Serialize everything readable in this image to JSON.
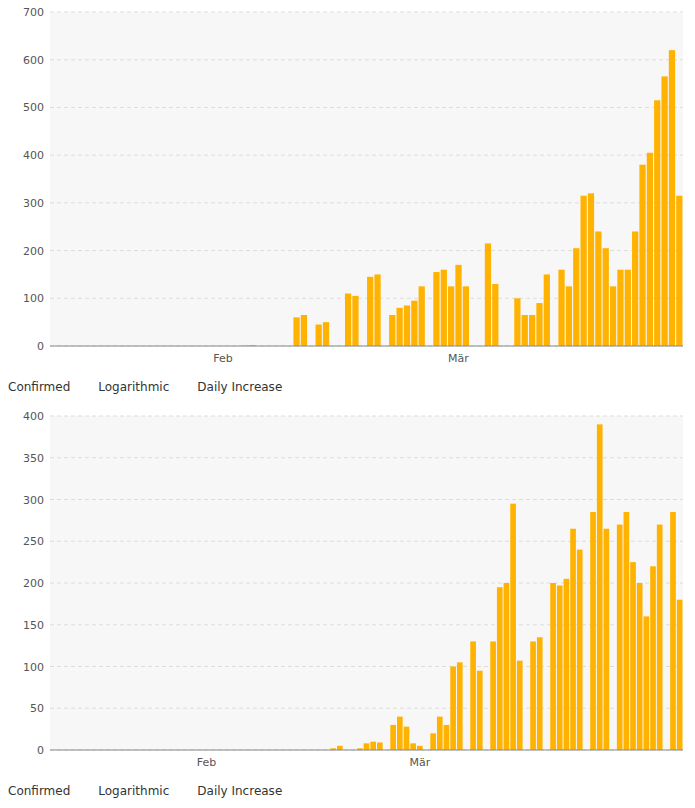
{
  "chart_data": [
    {
      "type": "bar",
      "categories": [
        null,
        null,
        null,
        null,
        null,
        null,
        null,
        null,
        null,
        null,
        null,
        null,
        null,
        null,
        null,
        null,
        null,
        null,
        null,
        null,
        null,
        null,
        null,
        "Feb",
        null,
        null,
        null,
        null,
        null,
        null,
        null,
        null,
        null,
        null,
        null,
        null,
        null,
        null,
        null,
        null,
        null,
        null,
        null,
        null,
        null,
        null,
        null,
        null,
        null,
        null,
        null,
        null,
        null,
        null,
        null,
        "Mär",
        null,
        null,
        null,
        null,
        null,
        null,
        null,
        null,
        null,
        null,
        null,
        null,
        null,
        null,
        null,
        null,
        null,
        null,
        null,
        null,
        null,
        null,
        null,
        null,
        null,
        null,
        null,
        null,
        null,
        null
      ],
      "values": [
        0,
        0,
        0,
        0,
        0,
        0,
        0,
        0,
        0,
        0,
        0,
        0,
        0,
        0,
        0,
        0,
        0,
        0,
        0,
        0,
        0,
        0,
        0,
        0,
        0,
        0,
        1,
        2,
        0,
        0,
        0,
        0,
        0,
        60,
        65,
        0,
        45,
        50,
        0,
        0,
        110,
        105,
        0,
        145,
        150,
        0,
        65,
        80,
        85,
        95,
        125,
        0,
        155,
        160,
        125,
        170,
        125,
        0,
        0,
        215,
        130,
        0,
        0,
        100,
        65,
        65,
        90,
        150,
        0,
        160,
        125,
        205,
        315,
        320,
        240,
        205,
        125,
        160,
        160,
        240,
        380,
        405,
        515,
        565,
        620,
        315
      ],
      "color": "#FFB300",
      "ylim": [
        0,
        700
      ],
      "yticks": [
        0,
        100,
        200,
        300,
        400,
        500,
        600,
        700
      ],
      "grid": true,
      "annotations": [
        "Confirmed",
        "Logarithmic",
        "Daily Increase"
      ]
    },
    {
      "type": "bar",
      "categories": [
        null,
        null,
        null,
        null,
        null,
        null,
        null,
        null,
        null,
        null,
        null,
        null,
        null,
        null,
        null,
        null,
        null,
        null,
        null,
        null,
        null,
        null,
        null,
        "Feb",
        null,
        null,
        null,
        null,
        null,
        null,
        null,
        null,
        null,
        null,
        null,
        null,
        null,
        null,
        null,
        null,
        null,
        null,
        null,
        null,
        null,
        null,
        null,
        null,
        null,
        null,
        null,
        null,
        null,
        null,
        null,
        "Mär",
        null,
        null,
        null,
        null,
        null,
        null,
        null,
        null,
        null,
        null,
        null,
        null,
        null,
        null,
        null,
        null,
        null,
        null,
        null,
        null,
        null,
        null,
        null,
        null,
        null,
        null,
        null,
        null,
        null,
        null,
        null,
        null,
        null,
        null,
        null,
        null,
        null,
        null,
        null
      ],
      "values": [
        0,
        0,
        0,
        0,
        0,
        0,
        0,
        0,
        0,
        0,
        0,
        0,
        0,
        0,
        0,
        0,
        0,
        0,
        0,
        0,
        0,
        0,
        0,
        0,
        0,
        0,
        0,
        0,
        0,
        0,
        0,
        0,
        0,
        0,
        0,
        0,
        0,
        0,
        0,
        0,
        0,
        0,
        2,
        5,
        0,
        0,
        2,
        8,
        10,
        9,
        0,
        30,
        40,
        28,
        8,
        5,
        0,
        20,
        40,
        30,
        100,
        105,
        0,
        130,
        95,
        0,
        130,
        195,
        200,
        295,
        107,
        0,
        130,
        135,
        0,
        200,
        197,
        205,
        265,
        240,
        0,
        285,
        390,
        265,
        0,
        270,
        285,
        225,
        200,
        160,
        220,
        270,
        0,
        285,
        180
      ],
      "color": "#FFB300",
      "ylim": [
        0,
        400
      ],
      "yticks": [
        0,
        50,
        100,
        150,
        200,
        250,
        300,
        350,
        400
      ],
      "grid": true,
      "annotations": [
        "Confirmed",
        "Logarithmic",
        "Daily Increase"
      ]
    }
  ]
}
